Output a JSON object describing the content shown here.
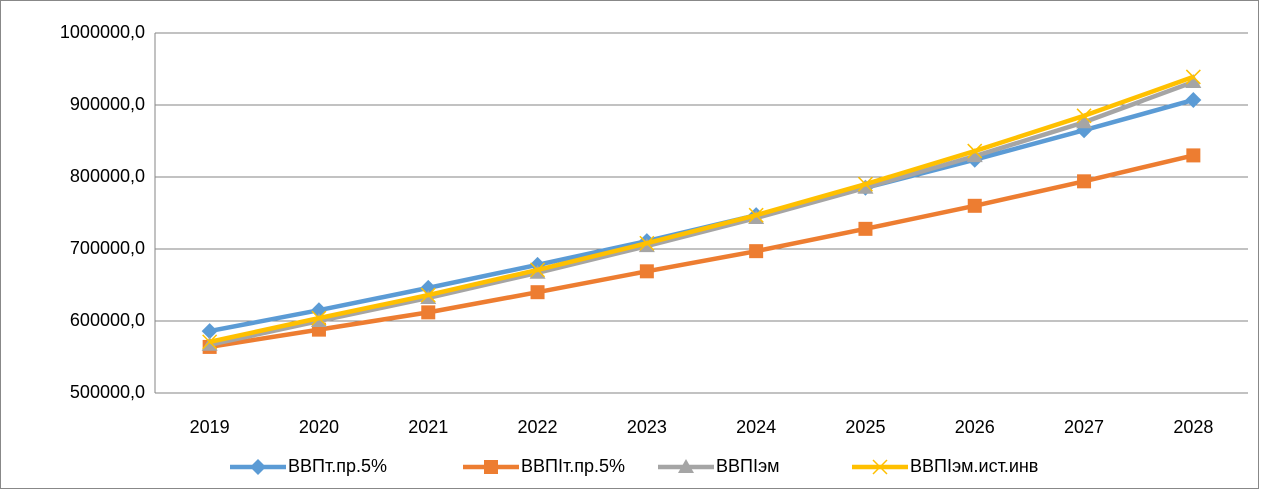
{
  "chart_data": {
    "type": "line",
    "categories": [
      "2019",
      "2020",
      "2021",
      "2022",
      "2023",
      "2024",
      "2025",
      "2026",
      "2027",
      "2028"
    ],
    "series": [
      {
        "name": "ВВПт.пр.5%",
        "color": "#5b9bd5",
        "marker": "diamond",
        "values": [
          586000,
          615000,
          646000,
          678000,
          711000,
          747000,
          785000,
          824000,
          865000,
          907000
        ]
      },
      {
        "name": "ВВПIт.пр.5%",
        "color": "#ed7d31",
        "marker": "square",
        "values": [
          564000,
          588000,
          612000,
          640000,
          669000,
          697000,
          728000,
          760000,
          794000,
          830000
        ]
      },
      {
        "name": "ВВПIэм",
        "color": "#a5a5a5",
        "marker": "triangle",
        "values": [
          567000,
          600000,
          632000,
          667000,
          704000,
          743000,
          785000,
          829000,
          876000,
          932000
        ]
      },
      {
        "name": "ВВПIэм.ист.инв",
        "color": "#ffc000",
        "marker": "x",
        "values": [
          571000,
          604000,
          636000,
          671000,
          708000,
          747000,
          790000,
          836000,
          885000,
          939000
        ]
      }
    ],
    "ylim": [
      500000,
      1000000
    ],
    "yticks": [
      {
        "value": 500000,
        "label": "500000,0"
      },
      {
        "value": 600000,
        "label": "600000,0"
      },
      {
        "value": 700000,
        "label": "700000,0"
      },
      {
        "value": 800000,
        "label": "800000,0"
      },
      {
        "value": 900000,
        "label": "900000,0"
      },
      {
        "value": 1000000,
        "label": "1000000,0"
      }
    ],
    "grid": true,
    "legend": "bottom"
  }
}
